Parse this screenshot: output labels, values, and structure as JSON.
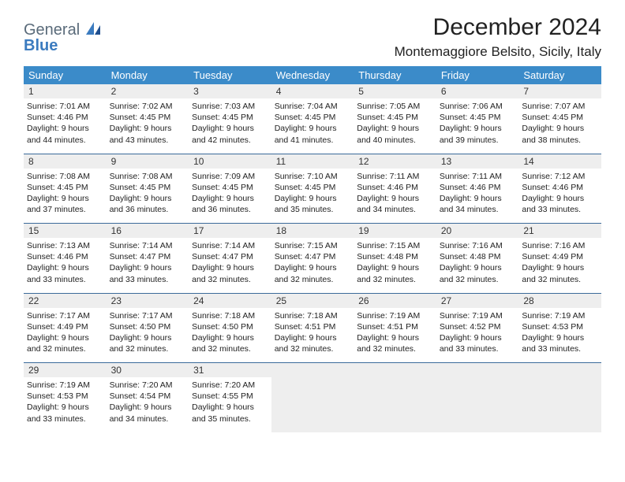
{
  "logo": {
    "text1": "General",
    "text2": "Blue"
  },
  "title": "December 2024",
  "subtitle": "Montemaggiore Belsito, Sicily, Italy",
  "header_bg": "#3b8bc9",
  "header_fg": "#ffffff",
  "daynum_bg": "#eeeeee",
  "rule_color": "#3b6a9a",
  "columns": [
    "Sunday",
    "Monday",
    "Tuesday",
    "Wednesday",
    "Thursday",
    "Friday",
    "Saturday"
  ],
  "weeks": [
    [
      {
        "n": 1,
        "sr": "7:01 AM",
        "ss": "4:46 PM",
        "dl": "9 hours and 44 minutes."
      },
      {
        "n": 2,
        "sr": "7:02 AM",
        "ss": "4:45 PM",
        "dl": "9 hours and 43 minutes."
      },
      {
        "n": 3,
        "sr": "7:03 AM",
        "ss": "4:45 PM",
        "dl": "9 hours and 42 minutes."
      },
      {
        "n": 4,
        "sr": "7:04 AM",
        "ss": "4:45 PM",
        "dl": "9 hours and 41 minutes."
      },
      {
        "n": 5,
        "sr": "7:05 AM",
        "ss": "4:45 PM",
        "dl": "9 hours and 40 minutes."
      },
      {
        "n": 6,
        "sr": "7:06 AM",
        "ss": "4:45 PM",
        "dl": "9 hours and 39 minutes."
      },
      {
        "n": 7,
        "sr": "7:07 AM",
        "ss": "4:45 PM",
        "dl": "9 hours and 38 minutes."
      }
    ],
    [
      {
        "n": 8,
        "sr": "7:08 AM",
        "ss": "4:45 PM",
        "dl": "9 hours and 37 minutes."
      },
      {
        "n": 9,
        "sr": "7:08 AM",
        "ss": "4:45 PM",
        "dl": "9 hours and 36 minutes."
      },
      {
        "n": 10,
        "sr": "7:09 AM",
        "ss": "4:45 PM",
        "dl": "9 hours and 36 minutes."
      },
      {
        "n": 11,
        "sr": "7:10 AM",
        "ss": "4:45 PM",
        "dl": "9 hours and 35 minutes."
      },
      {
        "n": 12,
        "sr": "7:11 AM",
        "ss": "4:46 PM",
        "dl": "9 hours and 34 minutes."
      },
      {
        "n": 13,
        "sr": "7:11 AM",
        "ss": "4:46 PM",
        "dl": "9 hours and 34 minutes."
      },
      {
        "n": 14,
        "sr": "7:12 AM",
        "ss": "4:46 PM",
        "dl": "9 hours and 33 minutes."
      }
    ],
    [
      {
        "n": 15,
        "sr": "7:13 AM",
        "ss": "4:46 PM",
        "dl": "9 hours and 33 minutes."
      },
      {
        "n": 16,
        "sr": "7:14 AM",
        "ss": "4:47 PM",
        "dl": "9 hours and 33 minutes."
      },
      {
        "n": 17,
        "sr": "7:14 AM",
        "ss": "4:47 PM",
        "dl": "9 hours and 32 minutes."
      },
      {
        "n": 18,
        "sr": "7:15 AM",
        "ss": "4:47 PM",
        "dl": "9 hours and 32 minutes."
      },
      {
        "n": 19,
        "sr": "7:15 AM",
        "ss": "4:48 PM",
        "dl": "9 hours and 32 minutes."
      },
      {
        "n": 20,
        "sr": "7:16 AM",
        "ss": "4:48 PM",
        "dl": "9 hours and 32 minutes."
      },
      {
        "n": 21,
        "sr": "7:16 AM",
        "ss": "4:49 PM",
        "dl": "9 hours and 32 minutes."
      }
    ],
    [
      {
        "n": 22,
        "sr": "7:17 AM",
        "ss": "4:49 PM",
        "dl": "9 hours and 32 minutes."
      },
      {
        "n": 23,
        "sr": "7:17 AM",
        "ss": "4:50 PM",
        "dl": "9 hours and 32 minutes."
      },
      {
        "n": 24,
        "sr": "7:18 AM",
        "ss": "4:50 PM",
        "dl": "9 hours and 32 minutes."
      },
      {
        "n": 25,
        "sr": "7:18 AM",
        "ss": "4:51 PM",
        "dl": "9 hours and 32 minutes."
      },
      {
        "n": 26,
        "sr": "7:19 AM",
        "ss": "4:51 PM",
        "dl": "9 hours and 32 minutes."
      },
      {
        "n": 27,
        "sr": "7:19 AM",
        "ss": "4:52 PM",
        "dl": "9 hours and 33 minutes."
      },
      {
        "n": 28,
        "sr": "7:19 AM",
        "ss": "4:53 PM",
        "dl": "9 hours and 33 minutes."
      }
    ],
    [
      {
        "n": 29,
        "sr": "7:19 AM",
        "ss": "4:53 PM",
        "dl": "9 hours and 33 minutes."
      },
      {
        "n": 30,
        "sr": "7:20 AM",
        "ss": "4:54 PM",
        "dl": "9 hours and 34 minutes."
      },
      {
        "n": 31,
        "sr": "7:20 AM",
        "ss": "4:55 PM",
        "dl": "9 hours and 35 minutes."
      },
      null,
      null,
      null,
      null
    ]
  ],
  "labels": {
    "sunrise": "Sunrise: ",
    "sunset": "Sunset: ",
    "daylight": "Daylight: "
  }
}
